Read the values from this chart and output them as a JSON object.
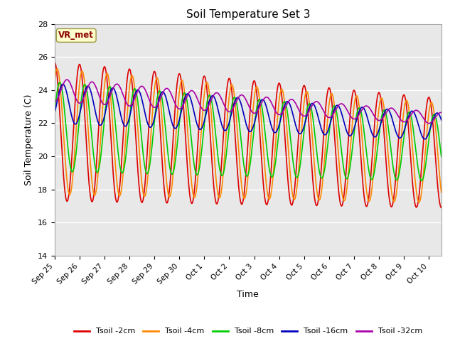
{
  "title": "Soil Temperature Set 3",
  "xlabel": "Time",
  "ylabel": "Soil Temperature (C)",
  "ylim": [
    14,
    28
  ],
  "yticks": [
    14,
    16,
    18,
    20,
    22,
    24,
    26,
    28
  ],
  "xlim_days": [
    0,
    15.5
  ],
  "fig_facecolor": "#ffffff",
  "plot_bg_color": "#e8e8e8",
  "annotation_text": "VR_met",
  "annotation_color": "#8b0000",
  "annotation_bg": "#ffffcc",
  "series": {
    "Tsoil -2cm": {
      "color": "#dd0000"
    },
    "Tsoil -4cm": {
      "color": "#ff8800"
    },
    "Tsoil -8cm": {
      "color": "#00cc00"
    },
    "Tsoil -16cm": {
      "color": "#0000bb"
    },
    "Tsoil -32cm": {
      "color": "#aa00aa"
    }
  },
  "xtick_labels": [
    "Sep 25",
    "Sep 26",
    "Sep 27",
    "Sep 28",
    "Sep 29",
    "Sep 30",
    "Oct 1",
    "Oct 2",
    "Oct 3",
    "Oct 4",
    "Oct 5",
    "Oct 6",
    "Oct 7",
    "Oct 8",
    "Oct 9",
    "Oct 10"
  ],
  "xtick_positions": [
    0,
    1,
    2,
    3,
    4,
    5,
    6,
    7,
    8,
    9,
    10,
    11,
    12,
    13,
    14,
    15
  ]
}
